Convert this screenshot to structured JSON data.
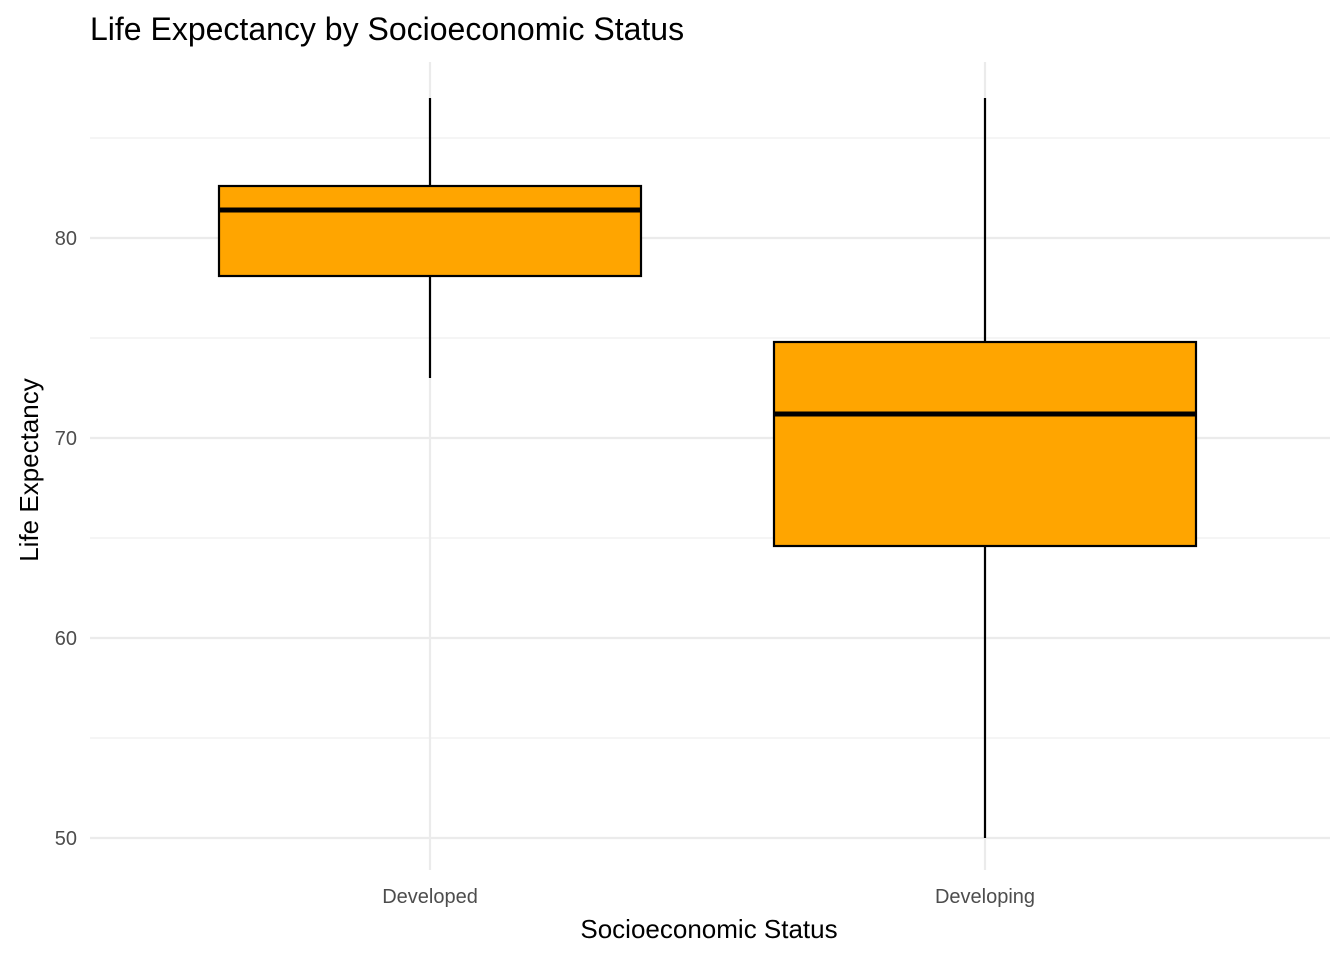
{
  "chart_data": {
    "type": "boxplot",
    "title": "Life Expectancy by Socioeconomic Status",
    "xlabel": "Socioeconomic Status",
    "ylabel": "Life Expectancy",
    "categories": [
      "Developed",
      "Developing"
    ],
    "ylim": [
      48.4,
      88.8
    ],
    "yticks": [
      50,
      60,
      70,
      80
    ],
    "grid": true,
    "box_color": "#FFA500",
    "boxes": [
      {
        "category": "Developed",
        "whisker_low": 73.0,
        "q1": 78.1,
        "median": 81.4,
        "q3": 82.6,
        "whisker_high": 87.0
      },
      {
        "category": "Developing",
        "whisker_low": 50.0,
        "q1": 64.6,
        "median": 71.2,
        "q3": 74.8,
        "whisker_high": 87.0
      }
    ]
  }
}
